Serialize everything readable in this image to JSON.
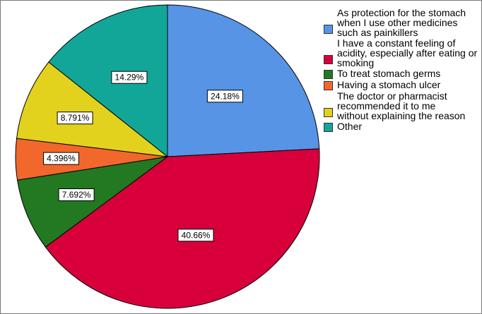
{
  "chart_data": {
    "type": "pie",
    "title": "",
    "legend_position": "right",
    "start": "12 o'clock, clockwise",
    "slices": [
      {
        "label": "As protection for the stomach when I use other medicines such as painkillers",
        "value": 24.18,
        "data_label": "24.18%",
        "color": "#5794e6"
      },
      {
        "label": "I have a constant feeling of acidity, especially after eating or smoking",
        "value": 40.66,
        "data_label": "40.66%",
        "color": "#d7003a"
      },
      {
        "label": "To treat stomach germs",
        "value": 7.692,
        "data_label": "7.692%",
        "color": "#237822"
      },
      {
        "label": "Having a stomach ulcer",
        "value": 4.396,
        "data_label": "4.396%",
        "color": "#f2672c"
      },
      {
        "label": "The doctor or pharmacist recommended it to me without explaining the reason",
        "value": 8.791,
        "data_label": "8.791%",
        "color": "#e2d21e"
      },
      {
        "label": "Other",
        "value": 14.29,
        "data_label": "14.29%",
        "color": "#12a699"
      }
    ]
  }
}
